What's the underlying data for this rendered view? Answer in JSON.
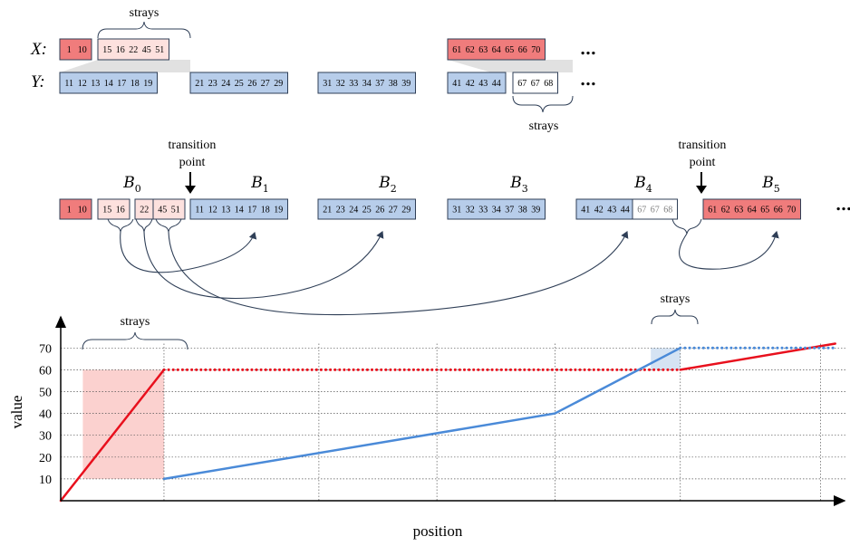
{
  "colors": {
    "red_fill": "#f07c7c",
    "red_light_fill": "#fde1de",
    "blue_fill": "#b7cdea",
    "white_fill": "#ffffff",
    "stroke": "#2f3f57",
    "red_line": "#e8101d",
    "blue_line": "#4a8ad8",
    "red_region": "#fbd1cf",
    "blue_region": "#d5e3f3",
    "gray_text": "#7f7f7f"
  },
  "labels": {
    "strays": "strays",
    "transition": "transition",
    "point": "point",
    "x_row": "X:",
    "y_row": "Y:",
    "ellipsis": "…",
    "value_axis": "value",
    "position_axis": "position"
  },
  "top": {
    "x_groups": [
      {
        "type": "red",
        "values": [
          "1",
          "10"
        ]
      },
      {
        "type": "red_light",
        "values": [
          "15",
          "16",
          "22",
          "45",
          "51"
        ]
      },
      {
        "type": "red",
        "values": [
          "61",
          "62",
          "63",
          "64",
          "65",
          "66",
          "70"
        ]
      }
    ],
    "y_groups": [
      {
        "type": "blue",
        "values": [
          "11",
          "12",
          "13",
          "14",
          "17",
          "18",
          "19"
        ]
      },
      {
        "type": "blue",
        "values": [
          "21",
          "23",
          "24",
          "25",
          "26",
          "27",
          "29"
        ]
      },
      {
        "type": "blue",
        "values": [
          "31",
          "32",
          "33",
          "34",
          "37",
          "38",
          "39"
        ]
      },
      {
        "type": "blue",
        "values": [
          "41",
          "42",
          "43",
          "44"
        ]
      },
      {
        "type": "white",
        "values": [
          "67",
          "67",
          "68"
        ]
      }
    ]
  },
  "middle": {
    "blocks": [
      {
        "name": "B",
        "sub": "0"
      },
      {
        "name": "B",
        "sub": "1"
      },
      {
        "name": "B",
        "sub": "2"
      },
      {
        "name": "B",
        "sub": "3"
      },
      {
        "name": "B",
        "sub": "4"
      },
      {
        "name": "B",
        "sub": "5"
      }
    ],
    "groups": [
      {
        "type": "red",
        "values": [
          "1",
          "10"
        ]
      },
      {
        "type": "red_light",
        "values": [
          "15",
          "16"
        ]
      },
      {
        "type": "red_light",
        "values": [
          "22"
        ]
      },
      {
        "type": "red_light",
        "values": [
          "45",
          "51"
        ]
      },
      {
        "type": "blue",
        "values": [
          "11",
          "12",
          "13",
          "14",
          "17",
          "18",
          "19"
        ]
      },
      {
        "type": "blue",
        "values": [
          "21",
          "23",
          "24",
          "25",
          "26",
          "27",
          "29"
        ]
      },
      {
        "type": "blue",
        "values": [
          "31",
          "32",
          "33",
          "34",
          "37",
          "38",
          "39"
        ]
      },
      {
        "type": "blue",
        "values": [
          "41",
          "42",
          "43",
          "44"
        ]
      },
      {
        "type": "white_gray",
        "values": [
          "67",
          "67",
          "68"
        ]
      },
      {
        "type": "red",
        "values": [
          "61",
          "62",
          "63",
          "64",
          "65",
          "66",
          "70"
        ]
      }
    ]
  },
  "chart_data": {
    "type": "line",
    "xlabel": "position",
    "ylabel": "value",
    "y_ticks": [
      "10",
      "20",
      "30",
      "40",
      "50",
      "60",
      "70"
    ],
    "ylim": [
      0,
      72
    ],
    "grid": true,
    "series": [
      {
        "color": "red",
        "style": "solid",
        "points": [
          [
            0,
            0
          ],
          [
            14,
            60
          ]
        ]
      },
      {
        "color": "red",
        "style": "dotted",
        "points": [
          [
            14,
            60
          ],
          [
            84,
            60
          ]
        ]
      },
      {
        "color": "red",
        "style": "solid",
        "points": [
          [
            84,
            60
          ],
          [
            105,
            72
          ]
        ]
      },
      {
        "color": "blue",
        "style": "solid",
        "points": [
          [
            14,
            10
          ],
          [
            67,
            40
          ],
          [
            84,
            70
          ]
        ]
      },
      {
        "color": "blue",
        "style": "dotted",
        "points": [
          [
            84,
            70
          ],
          [
            105,
            70
          ]
        ]
      }
    ],
    "x_gridlines": [
      14,
      35,
      51,
      67,
      84,
      103
    ],
    "regions": [
      {
        "color": "red",
        "x": [
          3,
          14
        ],
        "y": [
          10,
          60
        ],
        "label": "strays"
      },
      {
        "color": "blue",
        "x": [
          80,
          84
        ],
        "y": [
          60,
          70
        ],
        "label": "strays"
      }
    ]
  }
}
